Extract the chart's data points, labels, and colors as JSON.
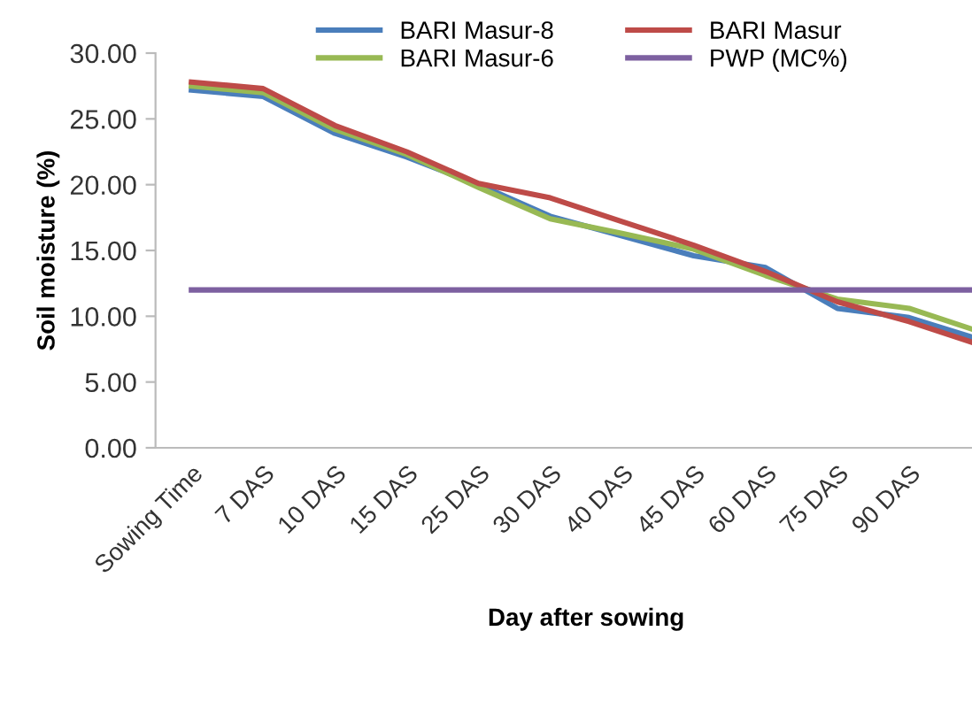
{
  "chart_data": {
    "type": "line",
    "xlabel": "Day after sowing",
    "ylabel": "Soil moisture (%)",
    "categories": [
      "Sowing Time",
      "7 DAS",
      "10 DAS",
      "15 DAS",
      "25 DAS",
      "30 DAS",
      "40 DAS",
      "45 DAS",
      "60 DAS",
      "75 DAS",
      "90 DAS",
      null
    ],
    "series": [
      {
        "name": "BARI Masur-8",
        "color": "#4a7ebb",
        "values": [
          27.2,
          26.7,
          23.9,
          22.1,
          20.0,
          17.6,
          16.1,
          14.6,
          13.7,
          10.6,
          9.9,
          8.2
        ]
      },
      {
        "name": "BARI Masur-6",
        "color": "#98b954",
        "values": [
          27.5,
          27.0,
          24.2,
          22.3,
          19.8,
          17.4,
          16.3,
          15.1,
          13.1,
          11.3,
          10.6,
          8.8
        ]
      },
      {
        "name": "BARI Masur",
        "color": "#be4b48",
        "values": [
          27.8,
          27.3,
          24.5,
          22.5,
          20.1,
          19.0,
          17.2,
          15.4,
          13.4,
          11.1,
          9.6,
          7.8
        ]
      },
      {
        "name": "PWP (MC%)",
        "color": "#7d60a0",
        "values": [
          12,
          12,
          12,
          12,
          12,
          12,
          12,
          12,
          12,
          12,
          12,
          12
        ]
      }
    ],
    "ylim": [
      0,
      30
    ],
    "yticks": [
      {
        "value": 0,
        "label": "0.00"
      },
      {
        "value": 5,
        "label": "5.00"
      },
      {
        "value": 10,
        "label": "10.00"
      },
      {
        "value": 15,
        "label": "15.00"
      },
      {
        "value": 20,
        "label": "20.00"
      },
      {
        "value": 25,
        "label": "25.00"
      },
      {
        "value": 30,
        "label": "30.00"
      }
    ],
    "grid": false,
    "legend": "top",
    "marker": "none",
    "line_style": "solid"
  }
}
